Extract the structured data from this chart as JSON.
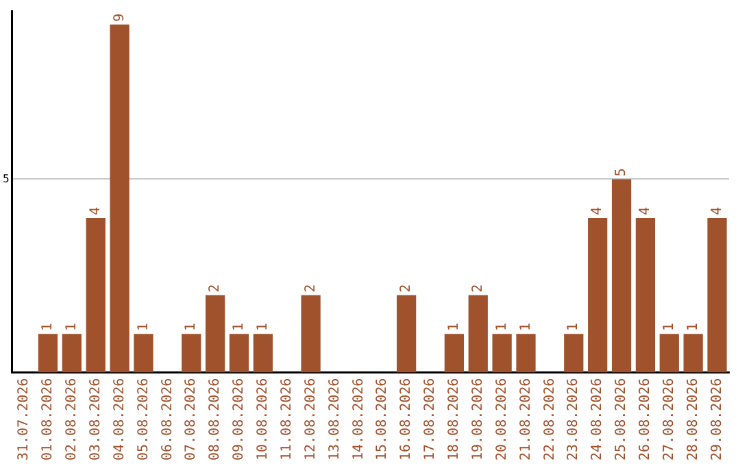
{
  "chart_data": {
    "type": "bar",
    "categories": [
      "31.07.2026",
      "01.08.2026",
      "02.08.2026",
      "03.08.2026",
      "04.08.2026",
      "05.08.2026",
      "06.08.2026",
      "07.08.2026",
      "08.08.2026",
      "09.08.2026",
      "10.08.2026",
      "11.08.2026",
      "12.08.2026",
      "13.08.2026",
      "14.08.2026",
      "15.08.2026",
      "16.08.2026",
      "17.08.2026",
      "18.08.2026",
      "19.08.2026",
      "20.08.2026",
      "21.08.2026",
      "22.08.2026",
      "23.08.2026",
      "24.08.2026",
      "25.08.2026",
      "26.08.2026",
      "27.08.2026",
      "28.08.2026",
      "29.08.2026"
    ],
    "values": [
      0,
      1,
      1,
      4,
      9,
      1,
      0,
      1,
      2,
      1,
      1,
      0,
      2,
      0,
      0,
      0,
      2,
      0,
      1,
      2,
      1,
      1,
      0,
      1,
      4,
      5,
      4,
      1,
      1,
      4
    ],
    "value_labels": [
      null,
      "1",
      "1",
      "4",
      "9",
      "1",
      null,
      "1",
      "2",
      "1",
      "1",
      null,
      "2",
      null,
      null,
      null,
      "2",
      null,
      "1",
      "2",
      "1",
      "1",
      null,
      "1",
      "4",
      "5",
      "4",
      "1",
      "1",
      "4"
    ],
    "color": "#a0522d",
    "ylim": [
      0,
      9.35
    ],
    "yticks": [
      5
    ],
    "grid": "y",
    "legend": false
  }
}
